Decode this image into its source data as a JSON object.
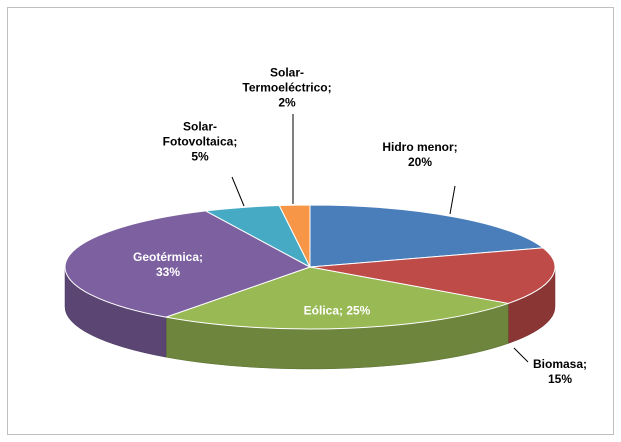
{
  "chart_data": {
    "type": "pie3d",
    "labels": [
      "Hidro menor;\n20%",
      "Biomasa; 15%",
      "Eólica; 25%",
      "Geotérmica;\n33%",
      "Solar-\nFotovoltaica;\n5%",
      "Solar-\nTermoeléctrico;\n2%"
    ],
    "values": [
      20,
      15,
      25,
      33,
      5,
      2
    ],
    "value_labels": [
      "Hidro menor;\n20%",
      "Biomasa; 15%",
      "Eólica; 25%",
      "Geotérmica;\n33%",
      "Solar-\nFotovoltaica;\n5%",
      "Solar-\nTermoeléctrico;\n2%"
    ],
    "colors": [
      "#4a7ebb",
      "#be4b48",
      "#98b954",
      "#7d60a0",
      "#46aac5",
      "#f79646"
    ]
  }
}
